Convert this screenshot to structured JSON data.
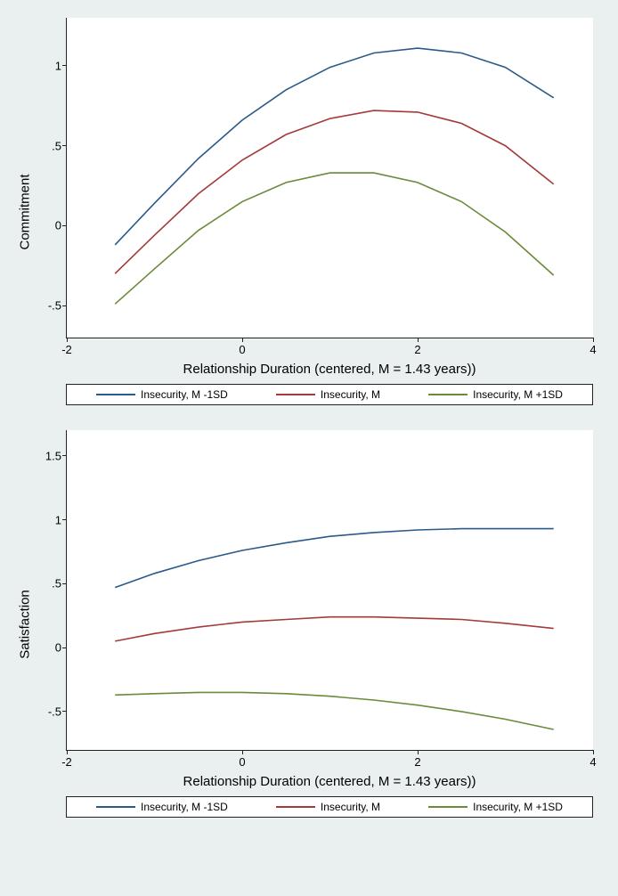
{
  "background_color": "#eaf0f0",
  "plot_bg": "#ffffff",
  "axis_color": "#222222",
  "font_family": "Arial",
  "label_fontsize": 15,
  "tick_fontsize": 13,
  "legend_fontsize": 12,
  "line_width": 1.6,
  "panels": [
    {
      "id": "commitment",
      "ylabel": "Commitment",
      "xlabel": "Relationship Duration (centered, M = 1.43 years))",
      "xlim": [
        -2,
        4
      ],
      "ylim": [
        -0.7,
        1.3
      ],
      "xticks": [
        -2,
        0,
        2,
        4
      ],
      "yticks": [
        -0.5,
        0,
        0.5,
        1
      ],
      "series": [
        {
          "name": "Insecurity, M -1SD",
          "color": "#2a5a8a",
          "points": [
            [
              -1.45,
              -0.12
            ],
            [
              -1.0,
              0.14
            ],
            [
              -0.5,
              0.42
            ],
            [
              0.0,
              0.66
            ],
            [
              0.5,
              0.85
            ],
            [
              1.0,
              0.99
            ],
            [
              1.5,
              1.08
            ],
            [
              2.0,
              1.11
            ],
            [
              2.5,
              1.08
            ],
            [
              3.0,
              0.99
            ],
            [
              3.55,
              0.8
            ]
          ]
        },
        {
          "name": "Insecurity, M",
          "color": "#a43a3a",
          "points": [
            [
              -1.45,
              -0.3
            ],
            [
              -1.0,
              -0.06
            ],
            [
              -0.5,
              0.2
            ],
            [
              0.0,
              0.41
            ],
            [
              0.5,
              0.57
            ],
            [
              1.0,
              0.67
            ],
            [
              1.5,
              0.72
            ],
            [
              2.0,
              0.71
            ],
            [
              2.5,
              0.64
            ],
            [
              3.0,
              0.5
            ],
            [
              3.55,
              0.26
            ]
          ]
        },
        {
          "name": "Insecurity, M +1SD",
          "color": "#6b8a3a",
          "points": [
            [
              -1.45,
              -0.49
            ],
            [
              -1.0,
              -0.27
            ],
            [
              -0.5,
              -0.03
            ],
            [
              0.0,
              0.15
            ],
            [
              0.5,
              0.27
            ],
            [
              1.0,
              0.33
            ],
            [
              1.5,
              0.33
            ],
            [
              2.0,
              0.27
            ],
            [
              2.5,
              0.15
            ],
            [
              3.0,
              -0.04
            ],
            [
              3.55,
              -0.31
            ]
          ]
        }
      ]
    },
    {
      "id": "satisfaction",
      "ylabel": "Satisfaction",
      "xlabel": "Relationship Duration (centered, M = 1.43 years))",
      "xlim": [
        -2,
        4
      ],
      "ylim": [
        -0.8,
        1.7
      ],
      "xticks": [
        -2,
        0,
        2,
        4
      ],
      "yticks": [
        -0.5,
        0,
        0.5,
        1,
        1.5
      ],
      "series": [
        {
          "name": "Insecurity, M -1SD",
          "color": "#2a5a8a",
          "points": [
            [
              -1.45,
              0.47
            ],
            [
              -1.0,
              0.58
            ],
            [
              -0.5,
              0.68
            ],
            [
              0.0,
              0.76
            ],
            [
              0.5,
              0.82
            ],
            [
              1.0,
              0.87
            ],
            [
              1.5,
              0.9
            ],
            [
              2.0,
              0.92
            ],
            [
              2.5,
              0.93
            ],
            [
              3.0,
              0.93
            ],
            [
              3.55,
              0.93
            ]
          ]
        },
        {
          "name": "Insecurity, M",
          "color": "#a43a3a",
          "points": [
            [
              -1.45,
              0.05
            ],
            [
              -1.0,
              0.11
            ],
            [
              -0.5,
              0.16
            ],
            [
              0.0,
              0.2
            ],
            [
              0.5,
              0.22
            ],
            [
              1.0,
              0.24
            ],
            [
              1.5,
              0.24
            ],
            [
              2.0,
              0.23
            ],
            [
              2.5,
              0.22
            ],
            [
              3.0,
              0.19
            ],
            [
              3.55,
              0.15
            ]
          ]
        },
        {
          "name": "Insecurity, M +1SD",
          "color": "#6b8a3a",
          "points": [
            [
              -1.45,
              -0.37
            ],
            [
              -1.0,
              -0.36
            ],
            [
              -0.5,
              -0.35
            ],
            [
              0.0,
              -0.35
            ],
            [
              0.5,
              -0.36
            ],
            [
              1.0,
              -0.38
            ],
            [
              1.5,
              -0.41
            ],
            [
              2.0,
              -0.45
            ],
            [
              2.5,
              -0.5
            ],
            [
              3.0,
              -0.56
            ],
            [
              3.55,
              -0.64
            ]
          ]
        }
      ]
    }
  ],
  "legend": {
    "items": [
      {
        "label": "Insecurity, M -1SD",
        "color": "#2a5a8a"
      },
      {
        "label": "Insecurity, M",
        "color": "#a43a3a"
      },
      {
        "label": "Insecurity, M +1SD",
        "color": "#6b8a3a"
      }
    ]
  }
}
